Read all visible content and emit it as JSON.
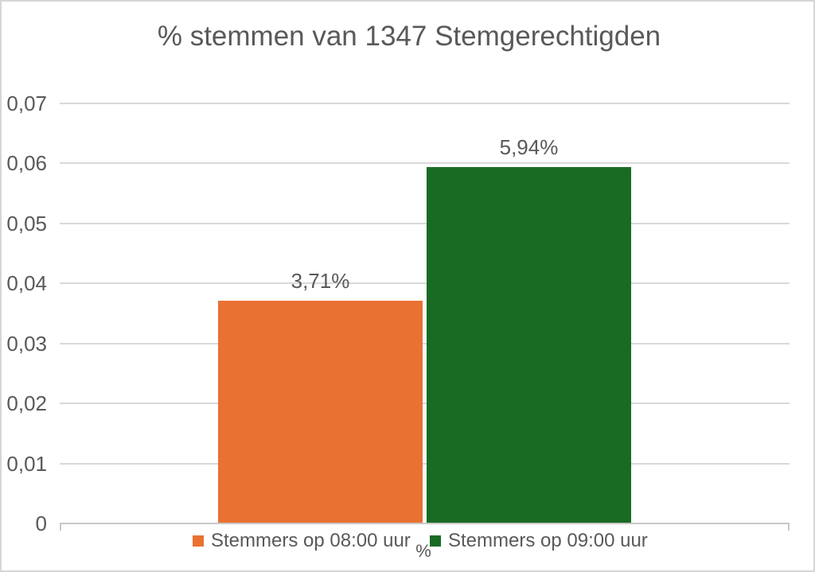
{
  "chart_title": "% stemmen van 1347 Stemgerechtigden",
  "x_axis_title": "%",
  "colors": {
    "series_orange": "#e97132",
    "series_green": "#196b24",
    "text_gray": "#595959",
    "gridline": "#d9d9d9",
    "axis_line": "#c8c8c8",
    "frame_border": "#d6d6d6"
  },
  "chart_data": {
    "type": "bar",
    "title": "% stemmen van 1347 Stemgerechtigden",
    "categories": [
      "%"
    ],
    "series": [
      {
        "name": "Stemmers op 08:00 uur",
        "values": [
          0.0371
        ],
        "data_labels": [
          "3,71%"
        ],
        "color": "#e97132"
      },
      {
        "name": "Stemmers op 09:00 uur",
        "values": [
          0.0594
        ],
        "data_labels": [
          "5,94%"
        ],
        "color": "#196b24"
      }
    ],
    "xlabel": "%",
    "ylabel": "",
    "ylim": [
      0,
      0.07
    ],
    "yticks": [
      {
        "value": 0,
        "label": "0"
      },
      {
        "value": 0.01,
        "label": "0,01"
      },
      {
        "value": 0.02,
        "label": "0,02"
      },
      {
        "value": 0.03,
        "label": "0,03"
      },
      {
        "value": 0.04,
        "label": "0,04"
      },
      {
        "value": 0.05,
        "label": "0,05"
      },
      {
        "value": 0.06,
        "label": "0,06"
      },
      {
        "value": 0.07,
        "label": "0,07"
      }
    ],
    "grid": true,
    "legend_position": "bottom"
  }
}
